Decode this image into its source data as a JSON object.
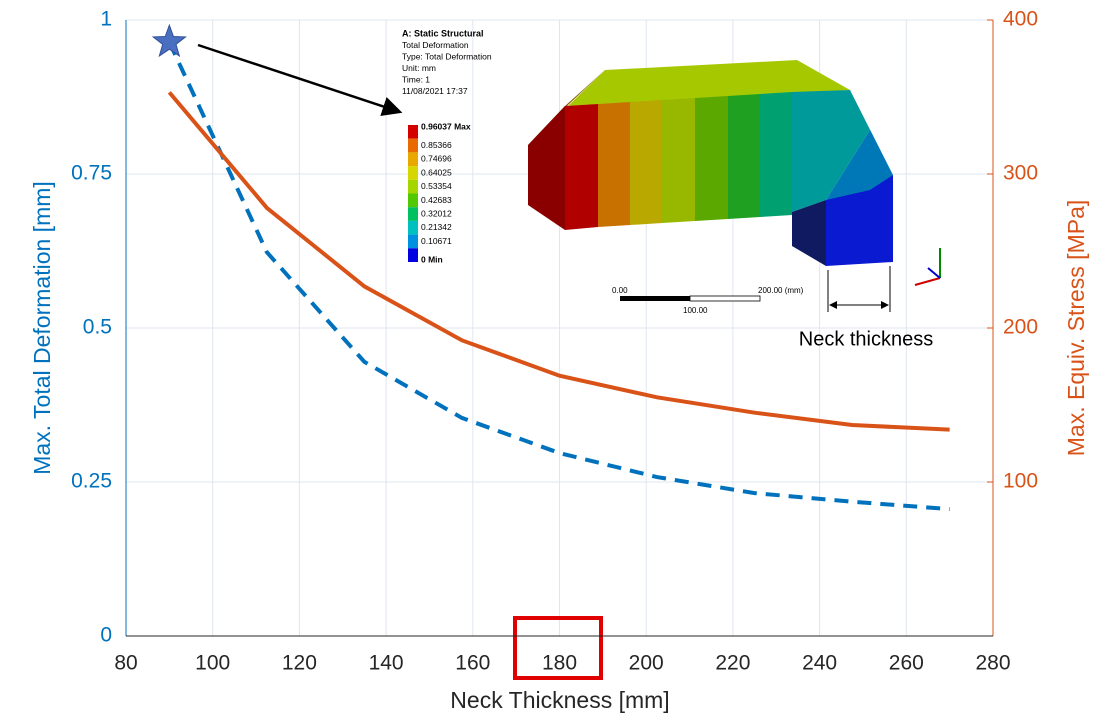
{
  "chart_data": {
    "type": "line",
    "xlabel": "Neck Thickness [mm]",
    "ylabel": "Max. Total Deformation [mm]",
    "y2label": "Max. Equiv. Stress [MPa]",
    "x": [
      90,
      112.5,
      135,
      157.5,
      180,
      202.5,
      225,
      247.5,
      270
    ],
    "series": [
      {
        "color": "#0072BD",
        "line_style": "dashed",
        "values": [
          0.964,
          0.623,
          0.445,
          0.354,
          0.297,
          0.258,
          0.232,
          0.218,
          0.206
        ]
      },
      {
        "color": "#D95319",
        "line_style": "solid",
        "axis": "y2",
        "values": [
          353,
          278,
          227,
          192,
          169,
          155,
          145,
          137,
          134
        ]
      }
    ],
    "xlim": [
      80,
      280
    ],
    "xticks": [
      80,
      100,
      120,
      140,
      160,
      180,
      200,
      220,
      240,
      260,
      280
    ],
    "ylim": [
      0,
      1
    ],
    "yticks": [
      0,
      0.25,
      0.5,
      0.75,
      1
    ],
    "y2lim": [
      0,
      400
    ],
    "y2ticks": [
      100,
      200,
      300,
      400
    ],
    "grid": true,
    "inset": {
      "header": [
        "A: Static Structural",
        "Total Deformation",
        "Type: Total Deformation",
        "Unit: mm",
        "Time: 1",
        "11/08/2021 17:37"
      ],
      "contour_labels": [
        "0.96037 Max",
        "0.85366",
        "0.74696",
        "0.64025",
        "0.53354",
        "0.42683",
        "0.32012",
        "0.21342",
        "0.10671",
        "0 Min"
      ],
      "contour_colors": [
        "#d40000",
        "#e86a00",
        "#e8a800",
        "#d6d600",
        "#a6d600",
        "#52c800",
        "#00c060",
        "#00c0c0",
        "#0090e0",
        "#0000e0"
      ],
      "scale_labels": [
        "0.00",
        "200.00 (mm)",
        "100.00"
      ],
      "dimension_label": "Neck thickness"
    }
  }
}
